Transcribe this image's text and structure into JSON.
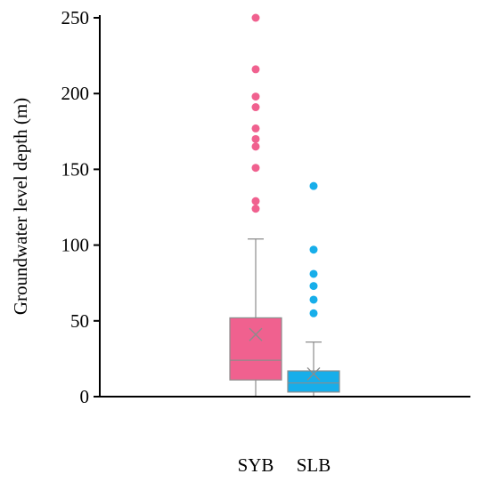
{
  "chart_data": {
    "type": "box",
    "ylabel": "Groundwater level depth (m)",
    "xlabel": "",
    "ylim": [
      0,
      250
    ],
    "yticks": [
      0,
      50,
      100,
      150,
      200,
      250
    ],
    "grid": false,
    "series": [
      {
        "name": "SYB",
        "color": "#f0618f",
        "whisker_low": 0,
        "q1": 11,
        "median": 24,
        "q3": 52,
        "whisker_high": 104,
        "mean": 41,
        "outliers": [
          124,
          129,
          151,
          165,
          170,
          177,
          191,
          198,
          216,
          250
        ]
      },
      {
        "name": "SLB",
        "color": "#17aeea",
        "whisker_low": 0,
        "q1": 3,
        "median": 9,
        "q3": 17,
        "whisker_high": 36,
        "mean": 15,
        "outliers": [
          55,
          64,
          73,
          81,
          97,
          139
        ]
      }
    ]
  }
}
